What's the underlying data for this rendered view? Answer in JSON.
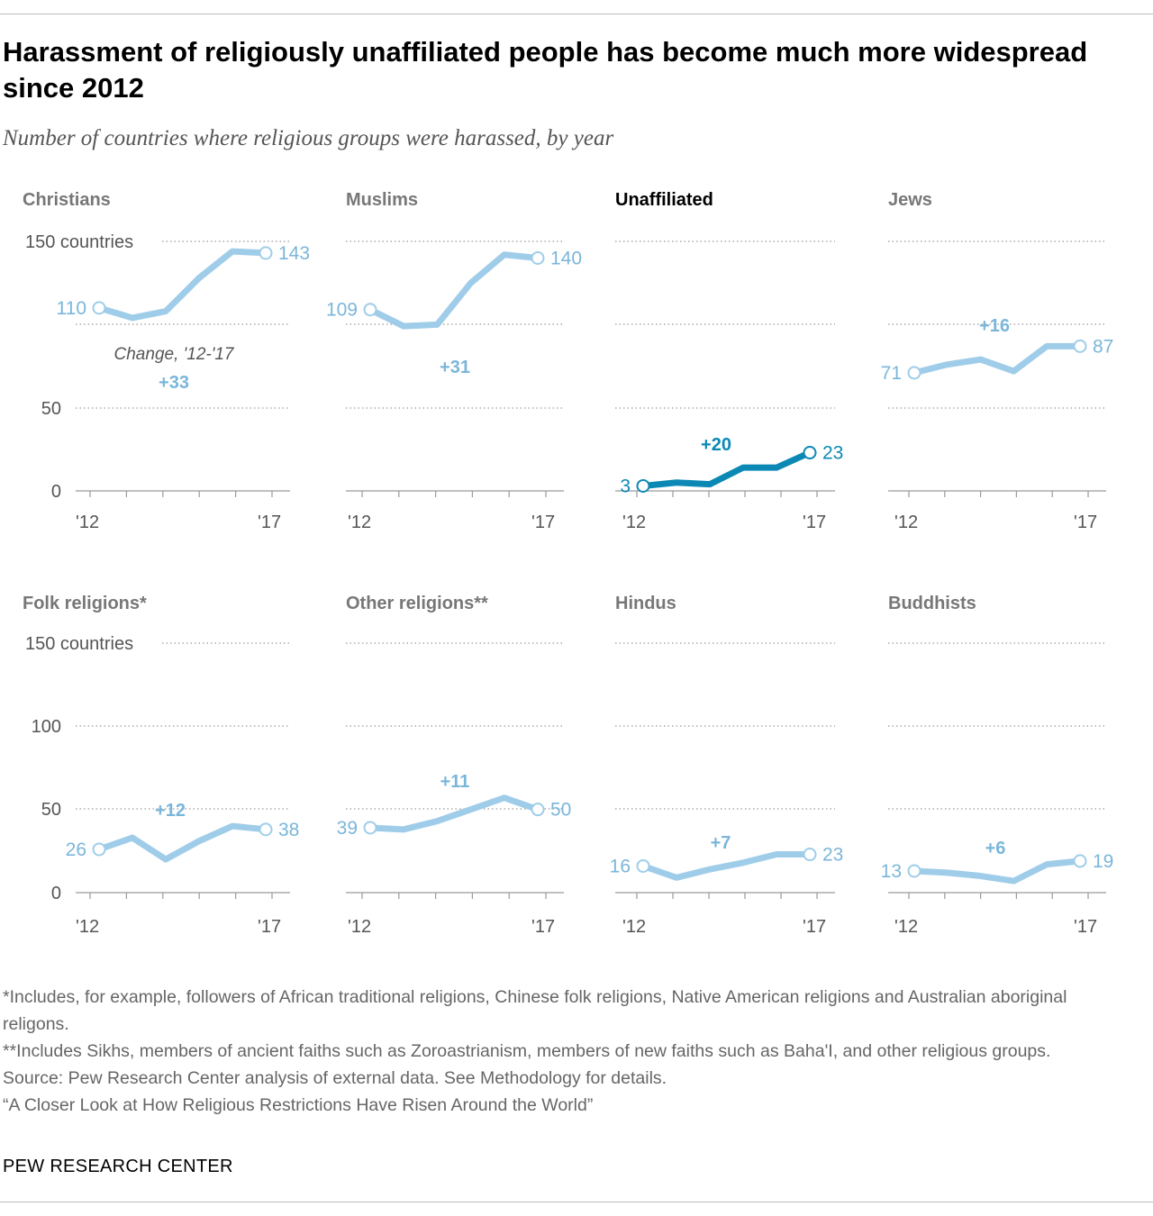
{
  "title": "Harassment of religiously unaffiliated people has become much more widespread since 2012",
  "subtitle": "Number of countries where religious groups were harassed, by year",
  "chart_data": {
    "type": "line",
    "note": "Small multiples; each panel shows number of countries per year, 2012-2017",
    "x": [
      2012,
      2013,
      2014,
      2015,
      2016,
      2017
    ],
    "x_tick_labels": [
      "'12",
      "'17"
    ],
    "y_range": [
      0,
      150
    ],
    "y_gridlines": [
      0,
      50,
      100,
      150
    ],
    "y_tick_labels": {
      "row1": [
        "150 countries",
        "50",
        "0"
      ],
      "row2": [
        "150 countries",
        "100",
        "50",
        "0"
      ]
    },
    "change_caption": "Change, '12-'17",
    "highlight_color": "#0b89b4",
    "base_color": "#9fcde9",
    "label_color": "#7ab6da",
    "panels": [
      {
        "name": "Christians",
        "values": [
          110,
          104,
          108,
          128,
          144,
          143
        ],
        "start_label": "110",
        "end_label": "143",
        "change": "+33"
      },
      {
        "name": "Muslims",
        "values": [
          109,
          99,
          100,
          125,
          142,
          140
        ],
        "start_label": "109",
        "end_label": "140",
        "change": "+31"
      },
      {
        "name": "Unaffiliated",
        "values": [
          3,
          5,
          4,
          14,
          14,
          23
        ],
        "start_label": "3",
        "end_label": "23",
        "change": "+20",
        "highlight": true
      },
      {
        "name": "Jews",
        "values": [
          71,
          76,
          79,
          72,
          87,
          87
        ],
        "start_label": "71",
        "end_label": "87",
        "change": "+16"
      },
      {
        "name": "Folk religions*",
        "values": [
          26,
          33,
          20,
          31,
          40,
          38
        ],
        "start_label": "26",
        "end_label": "38",
        "change": "+12"
      },
      {
        "name": "Other religions**",
        "values": [
          39,
          38,
          43,
          50,
          57,
          50
        ],
        "start_label": "39",
        "end_label": "50",
        "change": "+11"
      },
      {
        "name": "Hindus",
        "values": [
          16,
          9,
          14,
          18,
          23,
          23
        ],
        "start_label": "16",
        "end_label": "23",
        "change": "+7"
      },
      {
        "name": "Buddhists",
        "values": [
          13,
          12,
          10,
          7,
          17,
          19
        ],
        "start_label": "13",
        "end_label": "19",
        "change": "+6"
      }
    ]
  },
  "notes": [
    "*Includes, for example, followers of African traditional religions, Chinese folk religions, Native American religions and Australian aboriginal religons.",
    "**Includes Sikhs, members of ancient faiths such as Zoroastrianism, members of new faiths such as Baha'I, and other religious groups.",
    "Source: Pew Research Center analysis of external data. See Methodology for details.",
    "“A Closer Look at How Religious Restrictions Have Risen Around the World”"
  ],
  "brand": "PEW RESEARCH CENTER"
}
